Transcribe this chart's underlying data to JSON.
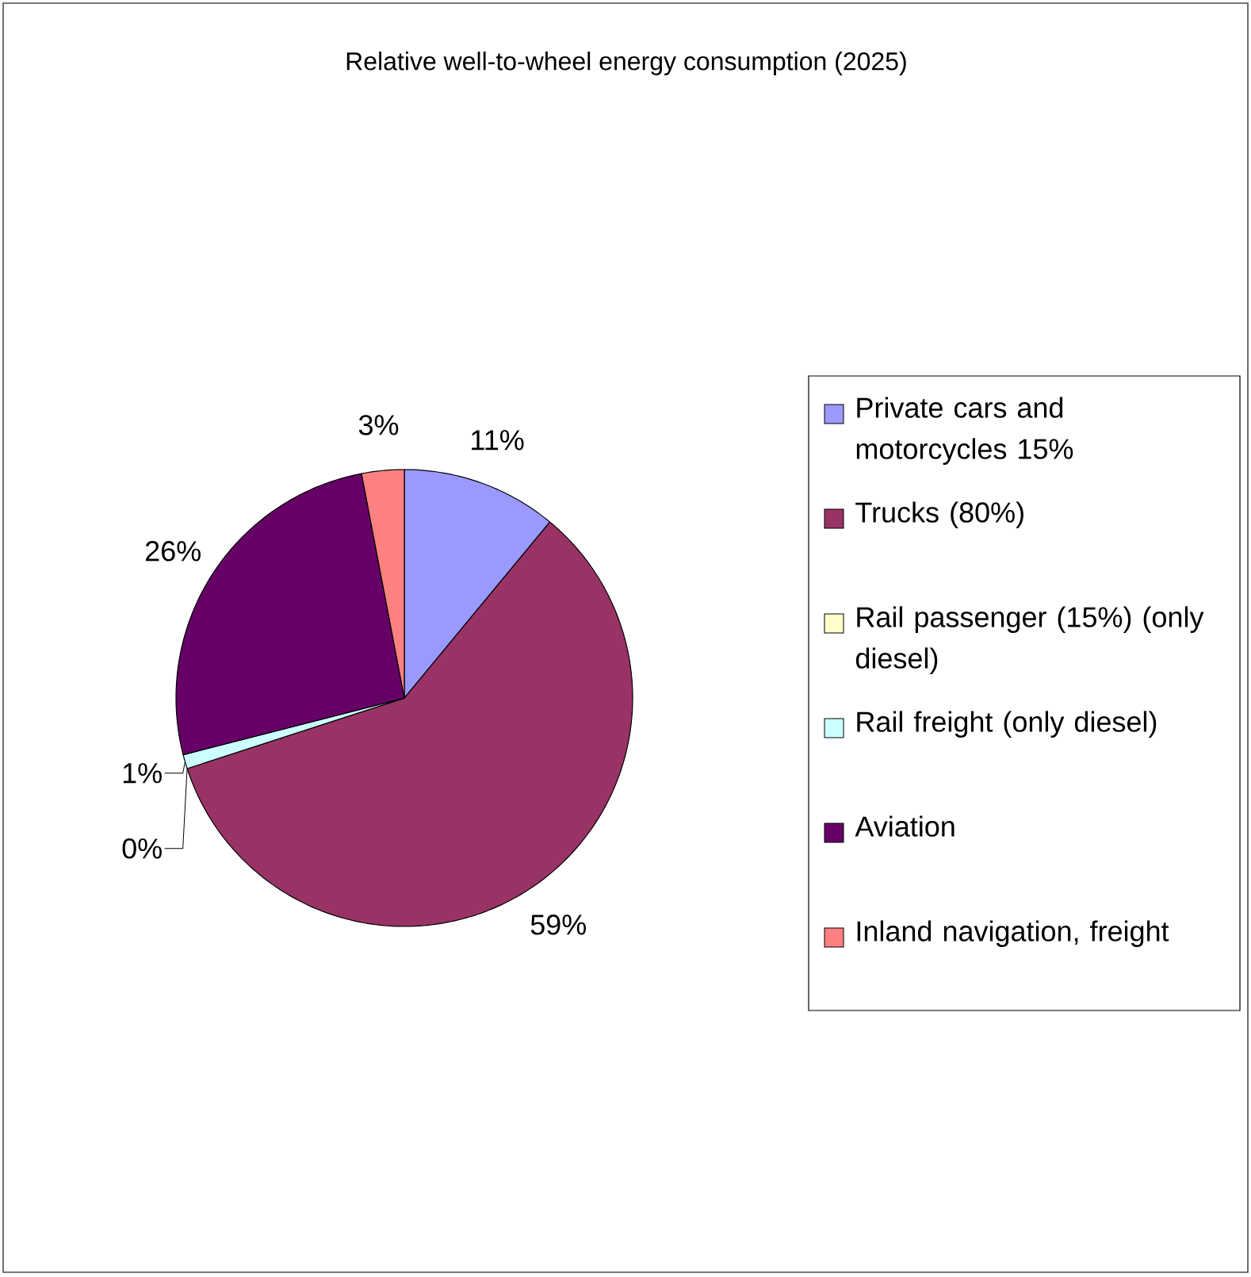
{
  "chart_data": {
    "type": "pie",
    "title": "Relative well-to-wheel energy consumption (2025)",
    "categories": [
      "Private cars and motorcycles 15%",
      "Trucks (80%)",
      "Rail passenger (15%) (only diesel)",
      "Rail freight (only diesel)",
      "Aviation",
      "Inland navigation, freight"
    ],
    "values": [
      11,
      59,
      0,
      1,
      26,
      3
    ],
    "value_labels": [
      "11%",
      "59%",
      "0%",
      "1%",
      "26%",
      "3%"
    ],
    "colors": [
      "#9999ff",
      "#993366",
      "#ffffcc",
      "#ccffff",
      "#660066",
      "#ff8080"
    ],
    "legend": "right"
  }
}
